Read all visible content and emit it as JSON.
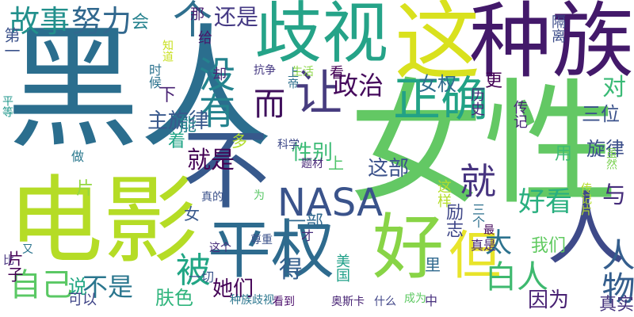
{
  "words": [
    {
      "text": "黑人",
      "color": "#2b6e8e"
    },
    {
      "text": "女性",
      "color": "#63c864"
    },
    {
      "text": "这",
      "color": "#d9e11e"
    },
    {
      "text": "种族",
      "color": "#43196a"
    },
    {
      "text": "歧视",
      "color": "#25a388"
    },
    {
      "text": "电影",
      "color": "#b5dc26"
    },
    {
      "text": "不",
      "color": "#37598c"
    },
    {
      "text": "平权",
      "color": "#2e6b8e"
    },
    {
      "text": "好",
      "color": "#88d446"
    },
    {
      "text": "但",
      "color": "#e8e42b"
    },
    {
      "text": "人",
      "color": "#3e4a89"
    },
    {
      "text": "个",
      "color": "#2f6f8e"
    },
    {
      "text": "让",
      "color": "#473c7f"
    },
    {
      "text": "正确",
      "color": "#22a286"
    },
    {
      "text": "而",
      "color": "#3f0f5c"
    },
    {
      "text": "没有",
      "color": "#24838e"
    },
    {
      "text": "故事",
      "color": "#22908c"
    },
    {
      "text": "努力",
      "color": "#31688e"
    },
    {
      "text": "还是",
      "color": "#453a84"
    },
    {
      "text": "自己",
      "color": "#5ac864"
    },
    {
      "text": "被",
      "color": "#21a685"
    },
    {
      "text": "NASA",
      "color": "#3a538b"
    },
    {
      "text": "就",
      "color": "#46337f"
    },
    {
      "text": "好看",
      "color": "#29af7f"
    },
    {
      "text": "与",
      "color": "#472e7c"
    },
    {
      "text": "白人",
      "color": "#3eb96f"
    },
    {
      "text": "太",
      "color": "#2c728e"
    },
    {
      "text": "人物",
      "color": "#355e8d"
    },
    {
      "text": "政治",
      "color": "#450a5c"
    },
    {
      "text": "女权",
      "color": "#2f6b8e"
    },
    {
      "text": "对",
      "color": "#3aba76"
    },
    {
      "text": "三位",
      "color": "#3b528b"
    },
    {
      "text": "旋律",
      "color": "#3c4f8a"
    },
    {
      "text": "主旋律",
      "color": "#38588c"
    },
    {
      "text": "就是",
      "color": "#440154"
    },
    {
      "text": "这部",
      "color": "#3b518b"
    },
    {
      "text": "性别",
      "color": "#3bbb75"
    },
    {
      "text": "不是",
      "color": "#2a768e"
    },
    {
      "text": "说",
      "color": "#22a884"
    },
    {
      "text": "她们",
      "color": "#440256"
    },
    {
      "text": "得",
      "color": "#355f8d"
    },
    {
      "text": "肤色",
      "color": "#2fb47c"
    },
    {
      "text": "因为",
      "color": "#482173"
    },
    {
      "text": "真实",
      "color": "#45337d"
    },
    {
      "text": "我们",
      "color": "#60ca60"
    },
    {
      "text": "用",
      "color": "#3fbc73"
    },
    {
      "text": "会",
      "color": "#26828e"
    },
    {
      "text": "那",
      "color": "#481f70"
    },
    {
      "text": "给",
      "color": "#481a6c"
    },
    {
      "text": "却",
      "color": "#482475"
    },
    {
      "text": "抗争",
      "color": "#453882"
    },
    {
      "text": "生活",
      "color": "#8bd646"
    },
    {
      "text": "历史",
      "color": "#482979"
    },
    {
      "text": "更",
      "color": "#440256"
    },
    {
      "text": "传记",
      "color": "#482878"
    },
    {
      "text": "隔离",
      "color": "#3d4d8a"
    },
    {
      "text": "能",
      "color": "#25858e"
    },
    {
      "text": "多",
      "color": "#b2dd2d"
    },
    {
      "text": "着",
      "color": "#20a486"
    },
    {
      "text": "片",
      "color": "#93d741"
    },
    {
      "text": "片子",
      "color": "#440154"
    },
    {
      "text": "第一",
      "color": "#3b528b"
    },
    {
      "text": "平等",
      "color": "#1f968b"
    },
    {
      "text": "科学",
      "color": "#3e4989"
    },
    {
      "text": "做",
      "color": "#2a788e"
    },
    {
      "text": "题材",
      "color": "#482878"
    },
    {
      "text": "上",
      "color": "#50c46a"
    },
    {
      "text": "女",
      "color": "#38598c"
    },
    {
      "text": "真的",
      "color": "#3b528b"
    },
    {
      "text": "为",
      "color": "#58c765"
    },
    {
      "text": "一部",
      "color": "#31688e"
    },
    {
      "text": "才",
      "color": "#472d7b"
    },
    {
      "text": "这样",
      "color": "#b5de2b"
    },
    {
      "text": "励志",
      "color": "#3f4788"
    },
    {
      "text": "三个",
      "color": "#2d708e"
    },
    {
      "text": "最",
      "color": "#46085c"
    },
    {
      "text": "真是",
      "color": "#482677"
    },
    {
      "text": "尊重",
      "color": "#3b528b"
    },
    {
      "text": "这个",
      "color": "#472d7b"
    },
    {
      "text": "比",
      "color": "#46337f"
    },
    {
      "text": "又",
      "color": "#2b748e"
    },
    {
      "text": "一切",
      "color": "#3a548c"
    },
    {
      "text": "美国",
      "color": "#1fa088"
    },
    {
      "text": "里",
      "color": "#30698e"
    },
    {
      "text": "中",
      "color": "#472f7d"
    },
    {
      "text": "可以",
      "color": "#404688"
    },
    {
      "text": "种族歧视",
      "color": "#2a768e"
    },
    {
      "text": "看到",
      "color": "#4a0c6b"
    },
    {
      "text": "奥斯卡",
      "color": "#482475"
    },
    {
      "text": "什么",
      "color": "#404588"
    },
    {
      "text": "成为",
      "color": "#5ec962"
    },
    {
      "text": "时候",
      "color": "#2c728e"
    },
    {
      "text": "虽然",
      "color": "#7ad151"
    },
    {
      "text": "传记片",
      "color": "#b5de2b"
    },
    {
      "text": "看",
      "color": "#440154"
    },
    {
      "text": "上帝",
      "color": "#2d708e"
    },
    {
      "text": "知道",
      "color": "#c8e020"
    },
    {
      "text": "下",
      "color": "#482173"
    }
  ]
}
